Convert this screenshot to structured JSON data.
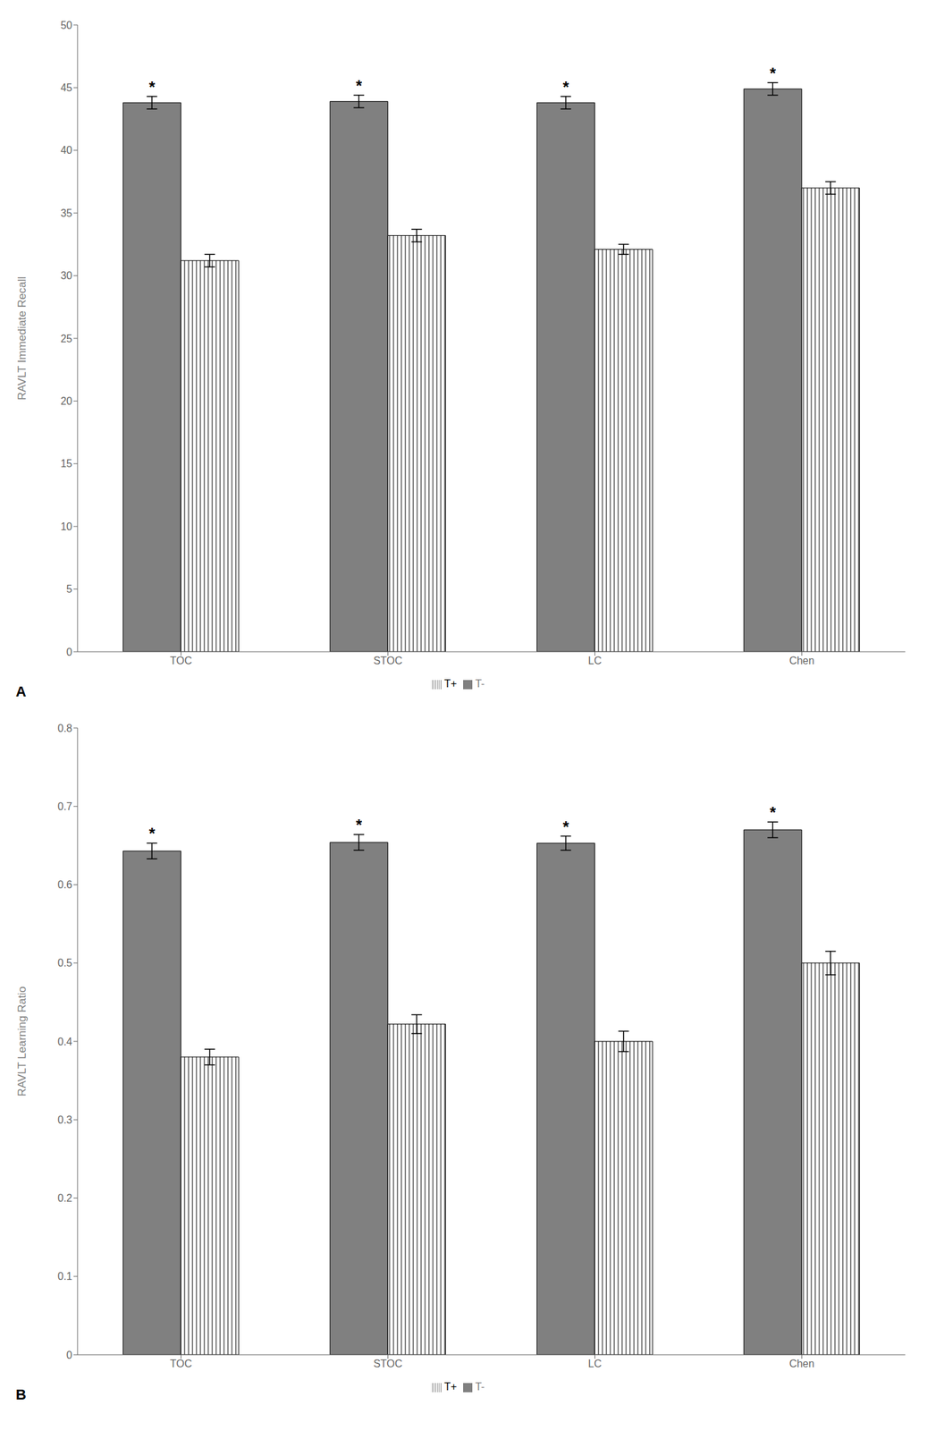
{
  "chart_data": [
    {
      "type": "bar",
      "categories": [
        "TOC",
        "STOC",
        "LC",
        "Chen"
      ],
      "ylabel": "RAVLT Immediate Recall",
      "ylim": [
        0,
        50
      ],
      "yticks": [
        0,
        5,
        10,
        15,
        20,
        25,
        30,
        35,
        40,
        45,
        50
      ],
      "grid": false,
      "series": [
        {
          "name": "T-",
          "color": "#808080",
          "values": [
            43.8,
            43.9,
            43.8,
            44.9
          ],
          "errors": [
            0.5,
            0.5,
            0.5,
            0.5
          ]
        },
        {
          "name": "T+",
          "color": "#ffffff",
          "values": [
            31.2,
            33.2,
            32.1,
            37.0
          ],
          "errors": [
            0.5,
            0.5,
            0.4,
            0.5
          ]
        }
      ],
      "annotations": [
        {
          "text": "*",
          "category": "TOC",
          "series": "T-"
        },
        {
          "text": "*",
          "category": "STOC",
          "series": "T-"
        },
        {
          "text": "*",
          "category": "LC",
          "series": "T-"
        },
        {
          "text": "*",
          "category": "Chen",
          "series": "T-"
        },
        {
          "text": "A"
        }
      ]
    },
    {
      "type": "bar",
      "categories": [
        "TOC",
        "STOC",
        "LC",
        "Chen"
      ],
      "ylabel": "RAVLT Learning Ratio",
      "ylim": [
        0,
        0.8
      ],
      "yticks": [
        0,
        0.1,
        0.2,
        0.3,
        0.4,
        0.5,
        0.6,
        0.7,
        0.8
      ],
      "grid": false,
      "series": [
        {
          "name": "T-",
          "color": "#808080",
          "values": [
            0.643,
            0.654,
            0.653,
            0.67
          ],
          "errors": [
            0.01,
            0.01,
            0.009,
            0.01
          ]
        },
        {
          "name": "T+",
          "color": "#ffffff",
          "values": [
            0.38,
            0.422,
            0.4,
            0.5
          ],
          "errors": [
            0.01,
            0.012,
            0.013,
            0.015
          ]
        }
      ],
      "annotations": [
        {
          "text": "*",
          "category": "TOC",
          "series": "T-"
        },
        {
          "text": "*",
          "category": "STOC",
          "series": "T-"
        },
        {
          "text": "*",
          "category": "LC",
          "series": "T-"
        },
        {
          "text": "*",
          "category": "Chen",
          "series": "T-"
        },
        {
          "text": "B"
        }
      ]
    }
  ]
}
